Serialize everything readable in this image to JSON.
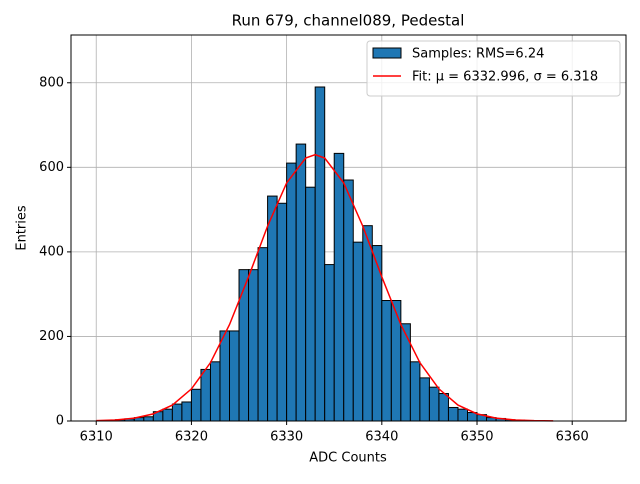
{
  "chart_data": {
    "type": "histogram",
    "title": "Run 679, channel089, Pedestal",
    "xlabel": "ADC Counts",
    "ylabel": "Entries",
    "bins": [
      6310,
      6311,
      6312,
      6313,
      6314,
      6315,
      6316,
      6317,
      6318,
      6319,
      6320,
      6321,
      6322,
      6323,
      6324,
      6325,
      6326,
      6327,
      6328,
      6329,
      6330,
      6331,
      6332,
      6333,
      6334,
      6335,
      6336,
      6337,
      6338,
      6339,
      6340,
      6341,
      6342,
      6343,
      6344,
      6345,
      6346,
      6347,
      6348,
      6349,
      6350,
      6351,
      6352,
      6353,
      6354,
      6355,
      6356,
      6357,
      6358,
      6359,
      6360,
      6361,
      6362,
      6363
    ],
    "series": [
      {
        "name": "Samples: RMS=6.24",
        "color": "#1f77b4",
        "values": [
          0,
          0,
          3,
          5,
          8,
          10,
          22,
          28,
          40,
          45,
          75,
          122,
          140,
          213,
          213,
          358,
          358,
          410,
          532,
          515,
          610,
          655,
          553,
          790,
          370,
          633,
          570,
          423,
          462,
          415,
          285,
          285,
          230,
          140,
          102,
          80,
          65,
          32,
          28,
          20,
          15,
          8,
          6,
          3,
          2,
          1,
          1,
          0,
          0,
          0,
          0,
          0,
          0
        ]
      },
      {
        "name": "Fit: μ = 6332.996, σ = 6.318",
        "color": "#ff0000",
        "x": [
          6310,
          6312,
          6314,
          6316,
          6318,
          6320,
          6322,
          6324,
          6326,
          6328,
          6330,
          6332,
          6333,
          6334,
          6336,
          6338,
          6340,
          6342,
          6344,
          6346,
          6348,
          6350,
          6352,
          6354,
          6356,
          6358
        ],
        "values": [
          0.8,
          2.5,
          6.8,
          16.9,
          37.6,
          75.9,
          138,
          228,
          341,
          461,
          563,
          622,
          630,
          622,
          563,
          461,
          341,
          228,
          138,
          75.9,
          37.6,
          16.9,
          6.8,
          2.5,
          0.8,
          0.25
        ]
      }
    ],
    "xlim": [
      6307.35,
      6365.65
    ],
    "ylim": [
      0,
      913
    ],
    "xticks": [
      6310,
      6320,
      6330,
      6340,
      6350,
      6360
    ],
    "yticks": [
      0,
      200,
      400,
      600,
      800
    ],
    "grid": true,
    "legend": "upper right"
  }
}
